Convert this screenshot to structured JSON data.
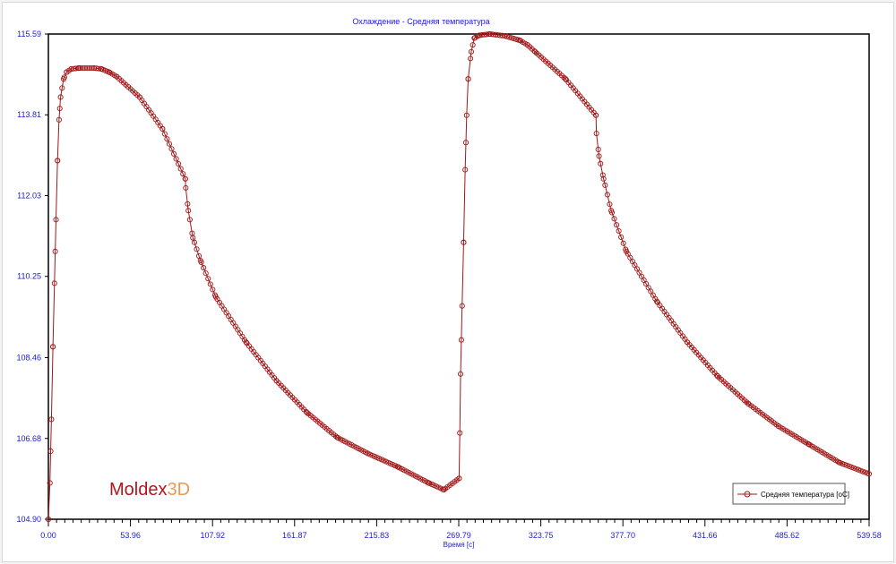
{
  "chart_data": {
    "type": "line",
    "title": "Охлаждение - Средняя температура",
    "xlabel": "Время [с]",
    "ylabel": "",
    "xlim": [
      0.0,
      539.58
    ],
    "ylim": [
      104.9,
      115.59
    ],
    "x_ticks": [
      "0.00",
      "53.96",
      "107.92",
      "161.87",
      "215.83",
      "269.79",
      "323.75",
      "377.70",
      "431.66",
      "485.62",
      "539.58"
    ],
    "y_ticks": [
      "104.90",
      "106.68",
      "108.46",
      "110.25",
      "112.03",
      "113.81",
      "115.59"
    ],
    "legend_position": "bottom-right",
    "grid": false,
    "series": [
      {
        "name": "Средняя температура [oC]",
        "color": "#a01818",
        "marker": "circle-open",
        "x": [
          0.0,
          1.0,
          2.0,
          3.0,
          4.0,
          5.0,
          6.0,
          7.0,
          8.0,
          10.0,
          12.0,
          15.0,
          20.0,
          30.0,
          35.0,
          40.0,
          45.0,
          60.0,
          75.0,
          90.0,
          90.3,
          92.0,
          95.0,
          100.0,
          110.0,
          130.0,
          150.0,
          170.0,
          190.0,
          210.0,
          230.0,
          250.0,
          260.0,
          270.0,
          270.5,
          271.0,
          272.0,
          273.0,
          274.0,
          275.0,
          276.0,
          278.0,
          280.0,
          283.0,
          290.0,
          300.0,
          310.0,
          315.0,
          320.0,
          340.0,
          360.0,
          360.3,
          362.0,
          365.0,
          370.0,
          380.0,
          400.0,
          420.0,
          440.0,
          460.0,
          480.0,
          500.0,
          520.0,
          539.58
        ],
        "y": [
          104.9,
          105.7,
          107.1,
          108.7,
          110.1,
          111.5,
          112.8,
          113.7,
          114.2,
          114.6,
          114.75,
          114.82,
          114.84,
          114.84,
          114.82,
          114.75,
          114.65,
          114.2,
          113.5,
          112.4,
          112.2,
          111.7,
          111.1,
          110.6,
          109.8,
          108.8,
          107.95,
          107.25,
          106.7,
          106.35,
          106.05,
          105.7,
          105.55,
          105.8,
          106.8,
          108.1,
          109.6,
          111.0,
          112.6,
          113.8,
          114.6,
          115.2,
          115.5,
          115.56,
          115.59,
          115.55,
          115.45,
          115.35,
          115.2,
          114.6,
          113.8,
          113.4,
          112.9,
          112.4,
          111.7,
          110.8,
          109.7,
          108.8,
          108.05,
          107.45,
          106.95,
          106.55,
          106.15,
          105.9
        ]
      }
    ]
  },
  "brand": {
    "name": "Moldex",
    "suffix": "3D"
  }
}
